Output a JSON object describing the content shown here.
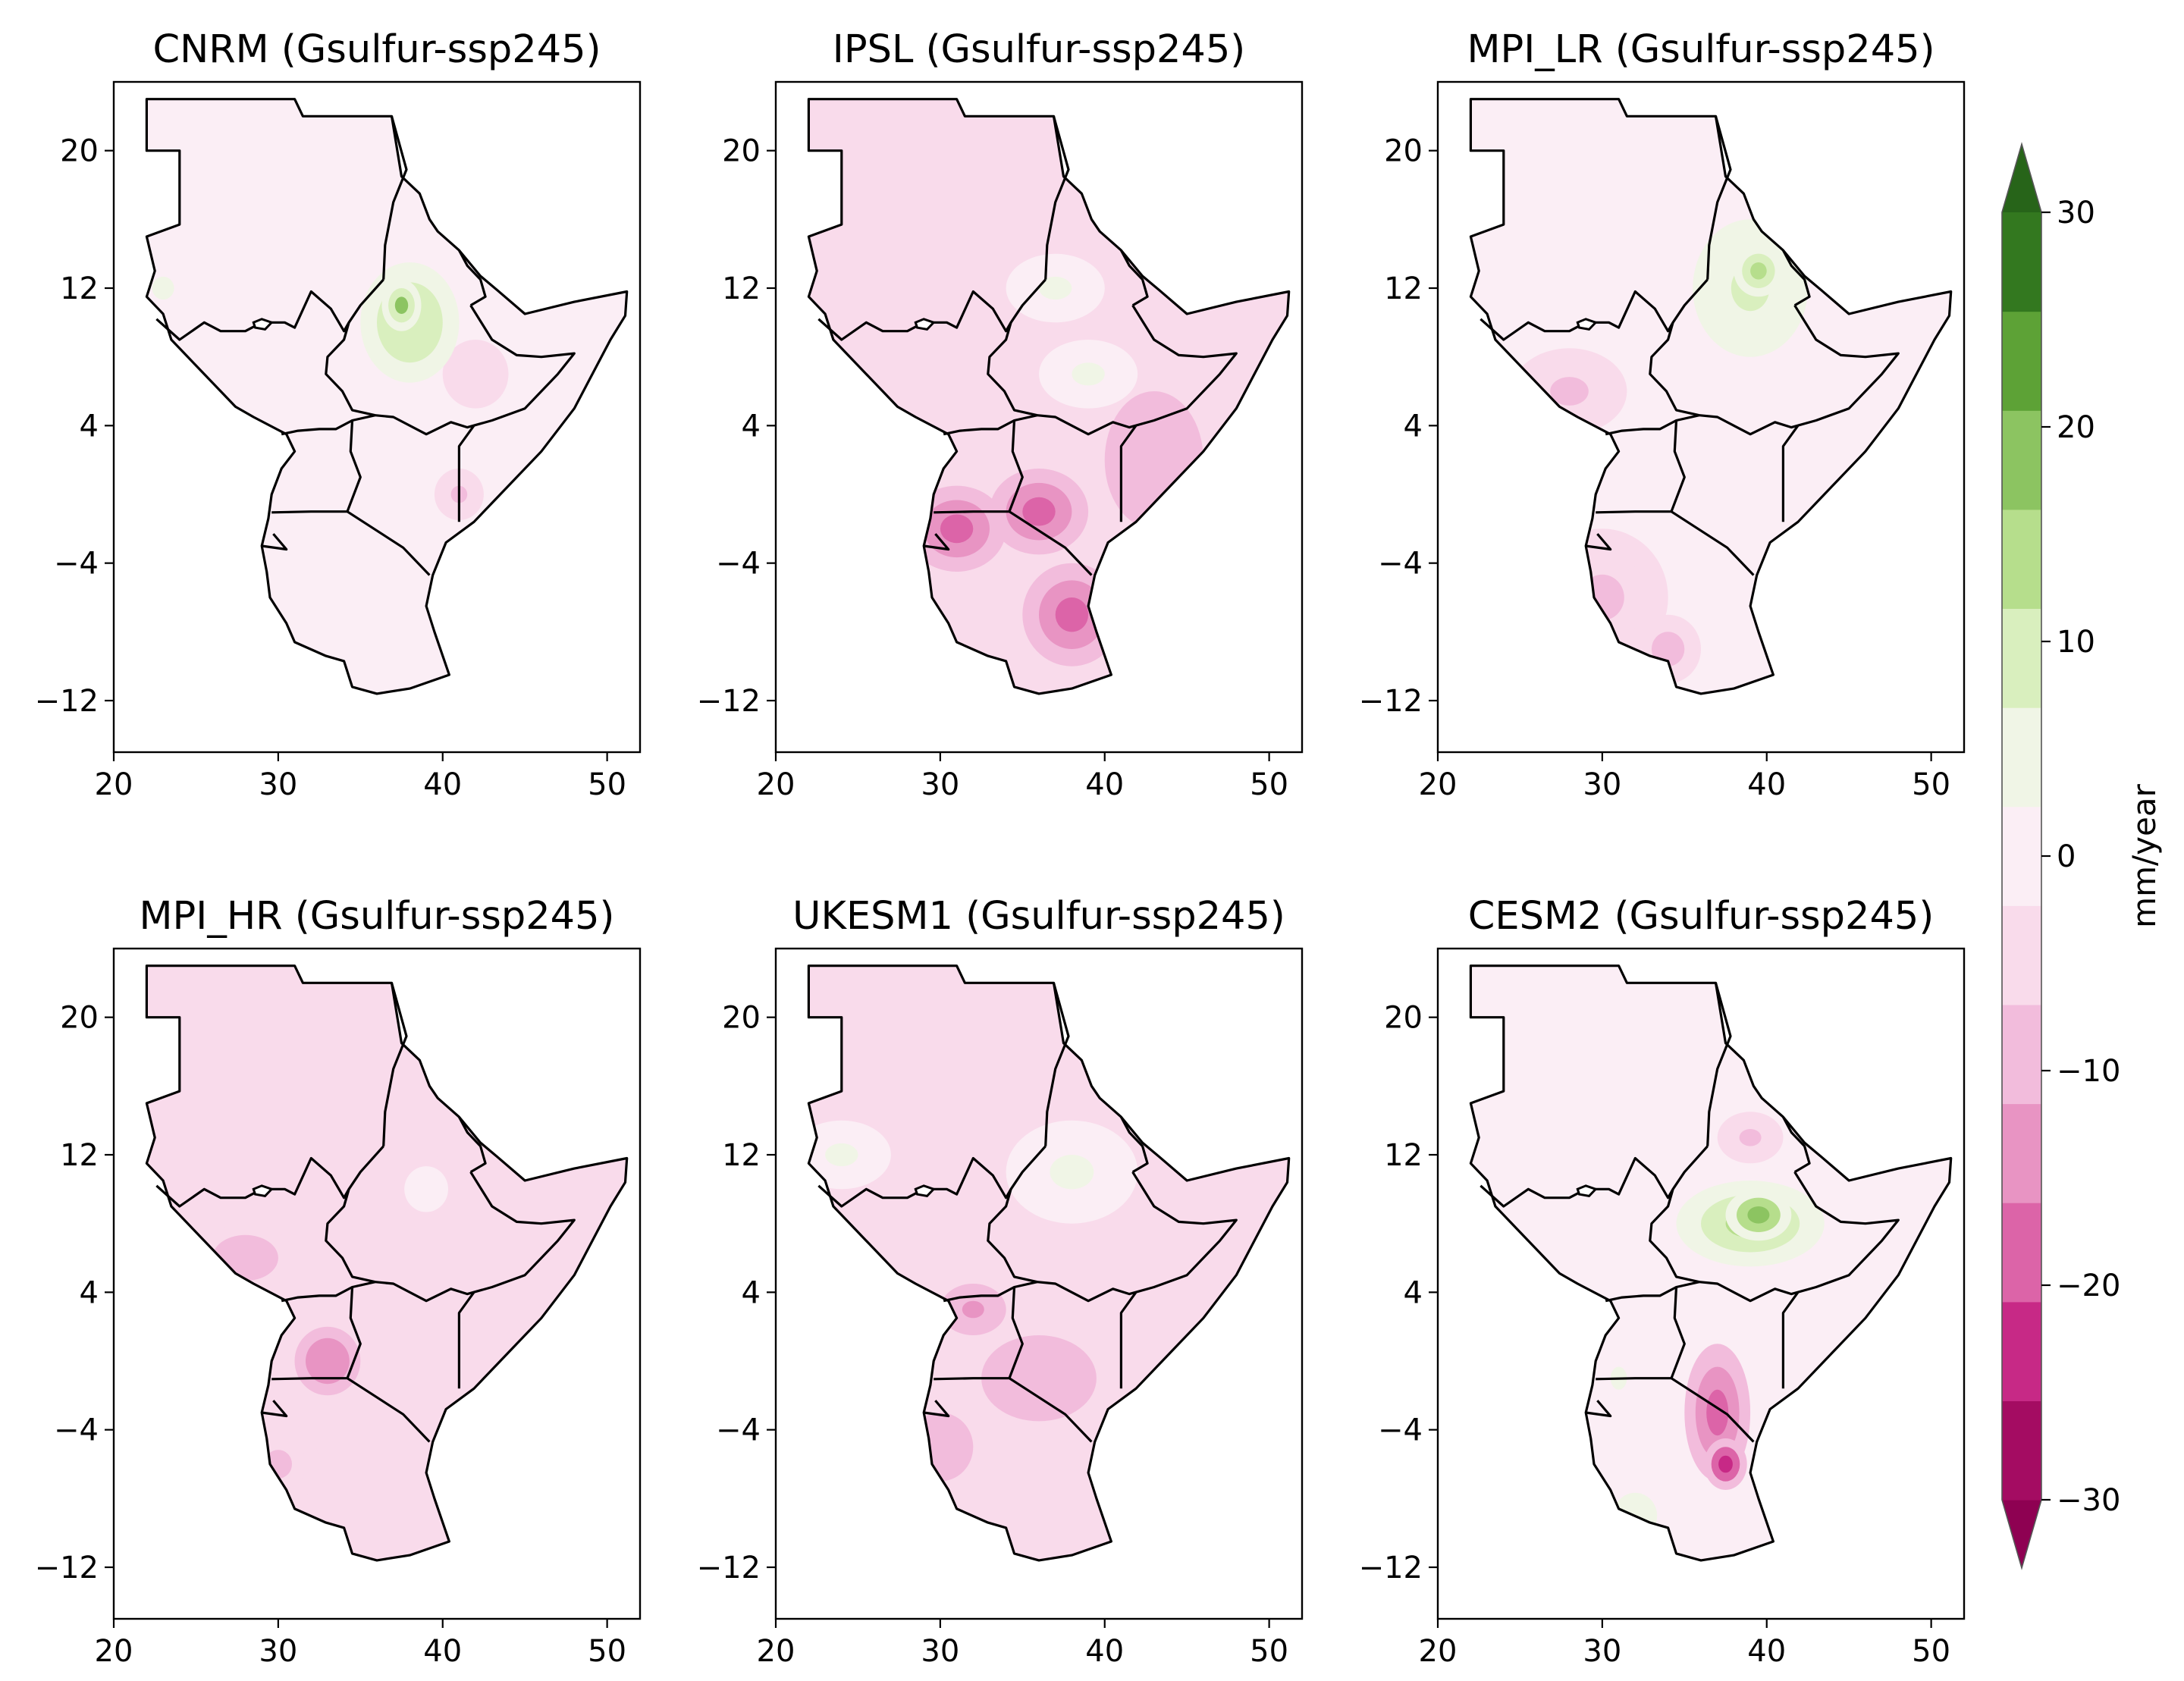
{
  "figure": {
    "colorbar": {
      "label": "mm/year",
      "ticks": [
        "30",
        "20",
        "10",
        "0",
        "−10",
        "−20",
        "−30"
      ],
      "levels": [
        -30,
        -25,
        -20,
        -15,
        -10,
        -5,
        0,
        5,
        10,
        15,
        20,
        25,
        30
      ],
      "colors": [
        "#a40c62",
        "#c72986",
        "#dc64a8",
        "#e894c3",
        "#f2bcdc",
        "#f9dbeb",
        "#fbeef5",
        "#f0f5e6",
        "#d9efbe",
        "#b6de8c",
        "#8cc461",
        "#5da236",
        "#33781f"
      ],
      "over_color": "#276419",
      "under_color": "#8e0152"
    },
    "axes": {
      "x_ticks": [
        "20",
        "30",
        "40",
        "50"
      ],
      "y_ticks": [
        "20",
        "12",
        "4",
        "−4",
        "−12"
      ]
    },
    "panels": [
      {
        "title": "CNRM (Gsulfur-ssp245)",
        "base": 2,
        "blobs": [
          {
            "lon": 38,
            "lat": 10,
            "rx": 3,
            "ry": 3.5,
            "v": 14
          },
          {
            "lon": 37.5,
            "lat": 11,
            "rx": 1.2,
            "ry": 1.5,
            "v": 20
          },
          {
            "lon": 23,
            "lat": 12,
            "rx": 2,
            "ry": 2,
            "v": 6
          },
          {
            "lon": 42,
            "lat": 7,
            "rx": 2,
            "ry": 2,
            "v": -5
          },
          {
            "lon": 41,
            "lat": 0,
            "rx": 1.5,
            "ry": 1.5,
            "v": -8
          }
        ]
      },
      {
        "title": "IPSL (Gsulfur-ssp245)",
        "base": -3,
        "blobs": [
          {
            "lon": 37,
            "lat": 12,
            "rx": 3,
            "ry": 2,
            "v": 8
          },
          {
            "lon": 39,
            "lat": 7,
            "rx": 3,
            "ry": 2,
            "v": 6
          },
          {
            "lon": 31,
            "lat": -2,
            "rx": 3,
            "ry": 2.5,
            "v": -20
          },
          {
            "lon": 36,
            "lat": -1,
            "rx": 3,
            "ry": 2.5,
            "v": -18
          },
          {
            "lon": 38,
            "lat": -7,
            "rx": 3,
            "ry": 3,
            "v": -19
          },
          {
            "lon": 43,
            "lat": 2,
            "rx": 3,
            "ry": 4,
            "v": -10
          }
        ]
      },
      {
        "title": "MPI_LR (Gsulfur-ssp245)",
        "base": 3,
        "blobs": [
          {
            "lon": 39,
            "lat": 12,
            "rx": 3.5,
            "ry": 4,
            "v": 10
          },
          {
            "lon": 39.5,
            "lat": 13,
            "rx": 1.5,
            "ry": 1.5,
            "v": 15
          },
          {
            "lon": 28,
            "lat": 6,
            "rx": 3.5,
            "ry": 2.5,
            "v": -8
          },
          {
            "lon": 30,
            "lat": -6,
            "rx": 4,
            "ry": 4,
            "v": -7
          },
          {
            "lon": 34,
            "lat": -9,
            "rx": 3,
            "ry": 3,
            "v": -6
          }
        ]
      },
      {
        "title": "MPI_HR (Gsulfur-ssp245)",
        "base": -3,
        "blobs": [
          {
            "lon": 33,
            "lat": 0,
            "rx": 2,
            "ry": 2,
            "v": -14
          },
          {
            "lon": 28,
            "lat": 6,
            "rx": 3,
            "ry": 2,
            "v": -7
          },
          {
            "lon": 39,
            "lat": 10,
            "rx": 2,
            "ry": 2,
            "v": 3
          },
          {
            "lon": 30,
            "lat": -6,
            "rx": 2.5,
            "ry": 2.5,
            "v": -6
          }
        ]
      },
      {
        "title": "UKESM1 (Gsulfur-ssp245)",
        "base": -3,
        "blobs": [
          {
            "lon": 38,
            "lat": 11,
            "rx": 4,
            "ry": 3,
            "v": 7
          },
          {
            "lon": 24,
            "lat": 12,
            "rx": 3,
            "ry": 2,
            "v": 6
          },
          {
            "lon": 36,
            "lat": -1,
            "rx": 3.5,
            "ry": 2.5,
            "v": -10
          },
          {
            "lon": 32,
            "lat": 3,
            "rx": 2,
            "ry": 1.5,
            "v": -12
          },
          {
            "lon": 30,
            "lat": -5,
            "rx": 3,
            "ry": 3,
            "v": -8
          }
        ]
      },
      {
        "title": "CESM2 (Gsulfur-ssp245)",
        "base": 1,
        "blobs": [
          {
            "lon": 39,
            "lat": 8,
            "rx": 4.5,
            "ry": 2.5,
            "v": 17
          },
          {
            "lon": 39.5,
            "lat": 8.5,
            "rx": 2,
            "ry": 1.5,
            "v": 23
          },
          {
            "lon": 37,
            "lat": -3,
            "rx": 2,
            "ry": 4,
            "v": -18
          },
          {
            "lon": 37.5,
            "lat": -6,
            "rx": 1.3,
            "ry": 1.5,
            "v": -24
          },
          {
            "lon": 39,
            "lat": 13,
            "rx": 2,
            "ry": 1.5,
            "v": -7
          },
          {
            "lon": 32,
            "lat": -9,
            "rx": 2,
            "ry": 2,
            "v": 8
          },
          {
            "lon": 31,
            "lat": -1,
            "rx": 1.5,
            "ry": 2,
            "v": 6
          }
        ]
      }
    ]
  }
}
